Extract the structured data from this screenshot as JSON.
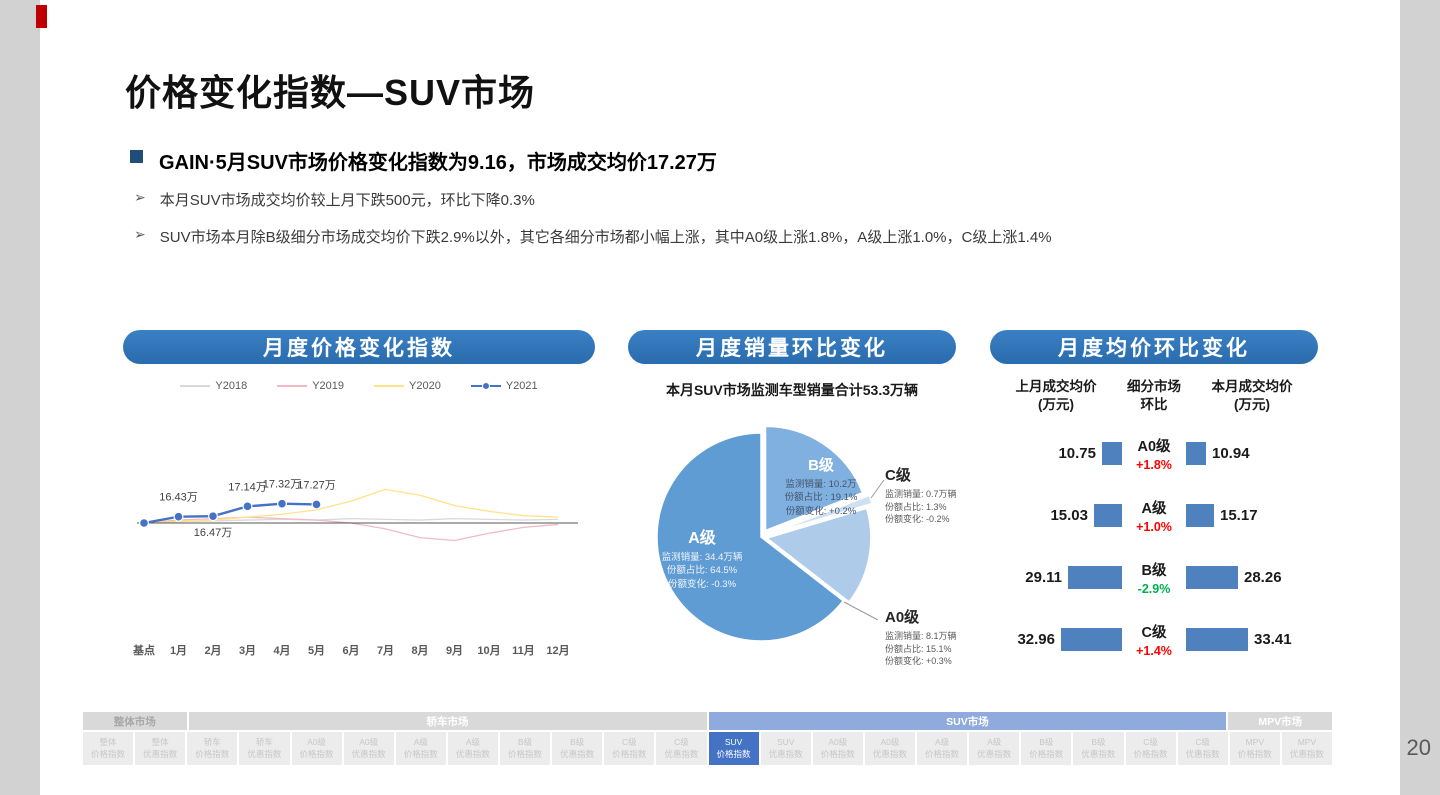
{
  "slide": {
    "title": "价格变化指数—SUV市场",
    "page_number": "20",
    "headline": "GAIN·5月SUV市场价格变化指数为9.16，市场成交均价17.27万",
    "bullet_marker": "➢",
    "bullets": [
      "本月SUV市场成交均价较上月下跌500元，环比下降0.3%",
      "SUV市场本月除B级细分市场成交均价下跌2.9%以外，其它各细分市场都小幅上涨，其中A0级上涨1.8%，A级上涨1.0%，C级上涨1.4%"
    ]
  },
  "panels": {
    "price_index_header": "月度价格变化指数",
    "sales_header": "月度销量环比变化",
    "avg_price_header": "月度均价环比变化"
  },
  "colors": {
    "panel_header_blue": "#2e75b6",
    "bar_blue": "#4e81bd",
    "up_red": "#ff0000",
    "down_green": "#00b050",
    "nav_active_group": "#8faadc",
    "nav_active_tab": "#4472c4",
    "accent_mark_red": "#c00000"
  },
  "chart_data": [
    {
      "type": "line",
      "title": "月度价格变化指数",
      "legend_position": "top",
      "categories": [
        "基点",
        "1月",
        "2月",
        "3月",
        "4月",
        "5月",
        "6月",
        "7月",
        "8月",
        "9月",
        "10月",
        "11月",
        "12月"
      ],
      "baseline_value": 16.0,
      "ylim": [
        14.5,
        18.6
      ],
      "series": [
        {
          "name": "Y2018",
          "color": "#d9d9d9",
          "marker": false,
          "values": [
            16.0,
            16.1,
            16.15,
            16.2,
            16.25,
            16.2,
            16.3,
            16.25,
            16.2,
            16.3,
            16.25,
            16.2,
            16.25
          ]
        },
        {
          "name": "Y2019",
          "color": "#f2b9c4",
          "marker": false,
          "values": [
            16.0,
            16.2,
            16.3,
            16.4,
            16.3,
            16.2,
            16.0,
            15.6,
            15.0,
            14.8,
            15.3,
            15.7,
            15.9
          ]
        },
        {
          "name": "Y2020",
          "color": "#ffe28a",
          "marker": false,
          "values": [
            16.0,
            16.1,
            16.2,
            16.4,
            16.6,
            16.9,
            17.5,
            18.3,
            17.9,
            17.2,
            16.8,
            16.5,
            16.4
          ]
        },
        {
          "name": "Y2021",
          "color": "#4472c4",
          "marker": true,
          "values": [
            16.0,
            16.43,
            16.47,
            17.14,
            17.32,
            17.27,
            null,
            null,
            null,
            null,
            null,
            null,
            null
          ]
        }
      ],
      "point_labels": [
        {
          "series": "Y2021",
          "index": 1,
          "text": "16.43万",
          "placement": "above"
        },
        {
          "series": "Y2021",
          "index": 2,
          "text": "16.47万",
          "placement": "below"
        },
        {
          "series": "Y2021",
          "index": 3,
          "text": "17.14万",
          "placement": "above"
        },
        {
          "series": "Y2021",
          "index": 4,
          "text": "17.32万",
          "placement": "above"
        },
        {
          "series": "Y2021",
          "index": 5,
          "text": "17.27万",
          "placement": "above"
        }
      ]
    },
    {
      "type": "pie",
      "title": "月度销量环比变化",
      "subtitle": "本月SUV市场监测车型销量合计53.3万辆",
      "slices": [
        {
          "label": "B级",
          "value": 19.1,
          "color": "#7fb0df",
          "explode": 8,
          "detail": [
            "监测销量: 10.2万",
            "份额占比 : 19.1%",
            "份额变化: +0.2%"
          ]
        },
        {
          "label": "C级",
          "value": 1.3,
          "color": "#cfe0f1",
          "explode": 12,
          "detail": [
            "监测销量: 0.7万辆",
            "份额占比: 1.3%",
            "份额变化: -0.2%"
          ]
        },
        {
          "label": "A0级",
          "value": 15.1,
          "color": "#aecbea",
          "explode": 6,
          "detail": [
            "监测销量: 8.1万辆",
            "份额占比: 15.1%",
            "份额变化: +0.3%"
          ]
        },
        {
          "label": "A级",
          "value": 64.5,
          "color": "#5e9cd3",
          "explode": 0,
          "detail": [
            "监测销量: 34.4万辆",
            "份额占比: 64.5%",
            "份额变化: -0.3%"
          ]
        }
      ]
    },
    {
      "type": "table",
      "title": "月度均价环比变化",
      "columns": [
        [
          "上月成交均价",
          "(万元)"
        ],
        [
          "细分市场",
          "环比"
        ],
        [
          "本月成交均价",
          "(万元)"
        ]
      ],
      "rows": [
        {
          "prev": "10.75",
          "segment": "A0级",
          "change": "+1.8%",
          "trend": "up",
          "curr": "10.94"
        },
        {
          "prev": "15.03",
          "segment": "A级",
          "change": "+1.0%",
          "trend": "up",
          "curr": "15.17"
        },
        {
          "prev": "29.11",
          "segment": "B级",
          "change": "-2.9%",
          "trend": "down",
          "curr": "28.26"
        },
        {
          "prev": "32.96",
          "segment": "C级",
          "change": "+1.4%",
          "trend": "up",
          "curr": "33.41"
        }
      ]
    }
  ],
  "nav": {
    "groups": [
      {
        "label": "整体市场",
        "span": 2,
        "active": false
      },
      {
        "label": "轿车市场",
        "span": 10,
        "active": false
      },
      {
        "label": "SUV市场",
        "span": 10,
        "active": true
      },
      {
        "label": "MPV市场",
        "span": 2,
        "active": false
      }
    ],
    "tabs": [
      {
        "line1": "整体",
        "line2": "价格指数",
        "active": false
      },
      {
        "line1": "整体",
        "line2": "优惠指数",
        "active": false
      },
      {
        "line1": "轿车",
        "line2": "价格指数",
        "active": false
      },
      {
        "line1": "轿车",
        "line2": "优惠指数",
        "active": false
      },
      {
        "line1": "A0级",
        "line2": "价格指数",
        "active": false
      },
      {
        "line1": "A0级",
        "line2": "优惠指数",
        "active": false
      },
      {
        "line1": "A级",
        "line2": "价格指数",
        "active": false
      },
      {
        "line1": "A级",
        "line2": "优惠指数",
        "active": false
      },
      {
        "line1": "B级",
        "line2": "价格指数",
        "active": false
      },
      {
        "line1": "B级",
        "line2": "优惠指数",
        "active": false
      },
      {
        "line1": "C级",
        "line2": "价格指数",
        "active": false
      },
      {
        "line1": "C级",
        "line2": "优惠指数",
        "active": false
      },
      {
        "line1": "SUV",
        "line2": "价格指数",
        "active": true
      },
      {
        "line1": "SUV",
        "line2": "优惠指数",
        "active": false
      },
      {
        "line1": "A0级",
        "line2": "价格指数",
        "active": false
      },
      {
        "line1": "A0级",
        "line2": "优惠指数",
        "active": false
      },
      {
        "line1": "A级",
        "line2": "价格指数",
        "active": false
      },
      {
        "line1": "A级",
        "line2": "优惠指数",
        "active": false
      },
      {
        "line1": "B级",
        "line2": "价格指数",
        "active": false
      },
      {
        "line1": "B级",
        "line2": "优惠指数",
        "active": false
      },
      {
        "line1": "C级",
        "line2": "价格指数",
        "active": false
      },
      {
        "line1": "C级",
        "line2": "优惠指数",
        "active": false
      },
      {
        "line1": "MPV",
        "line2": "价格指数",
        "active": false
      },
      {
        "line1": "MPV",
        "line2": "优惠指数",
        "active": false
      }
    ]
  }
}
